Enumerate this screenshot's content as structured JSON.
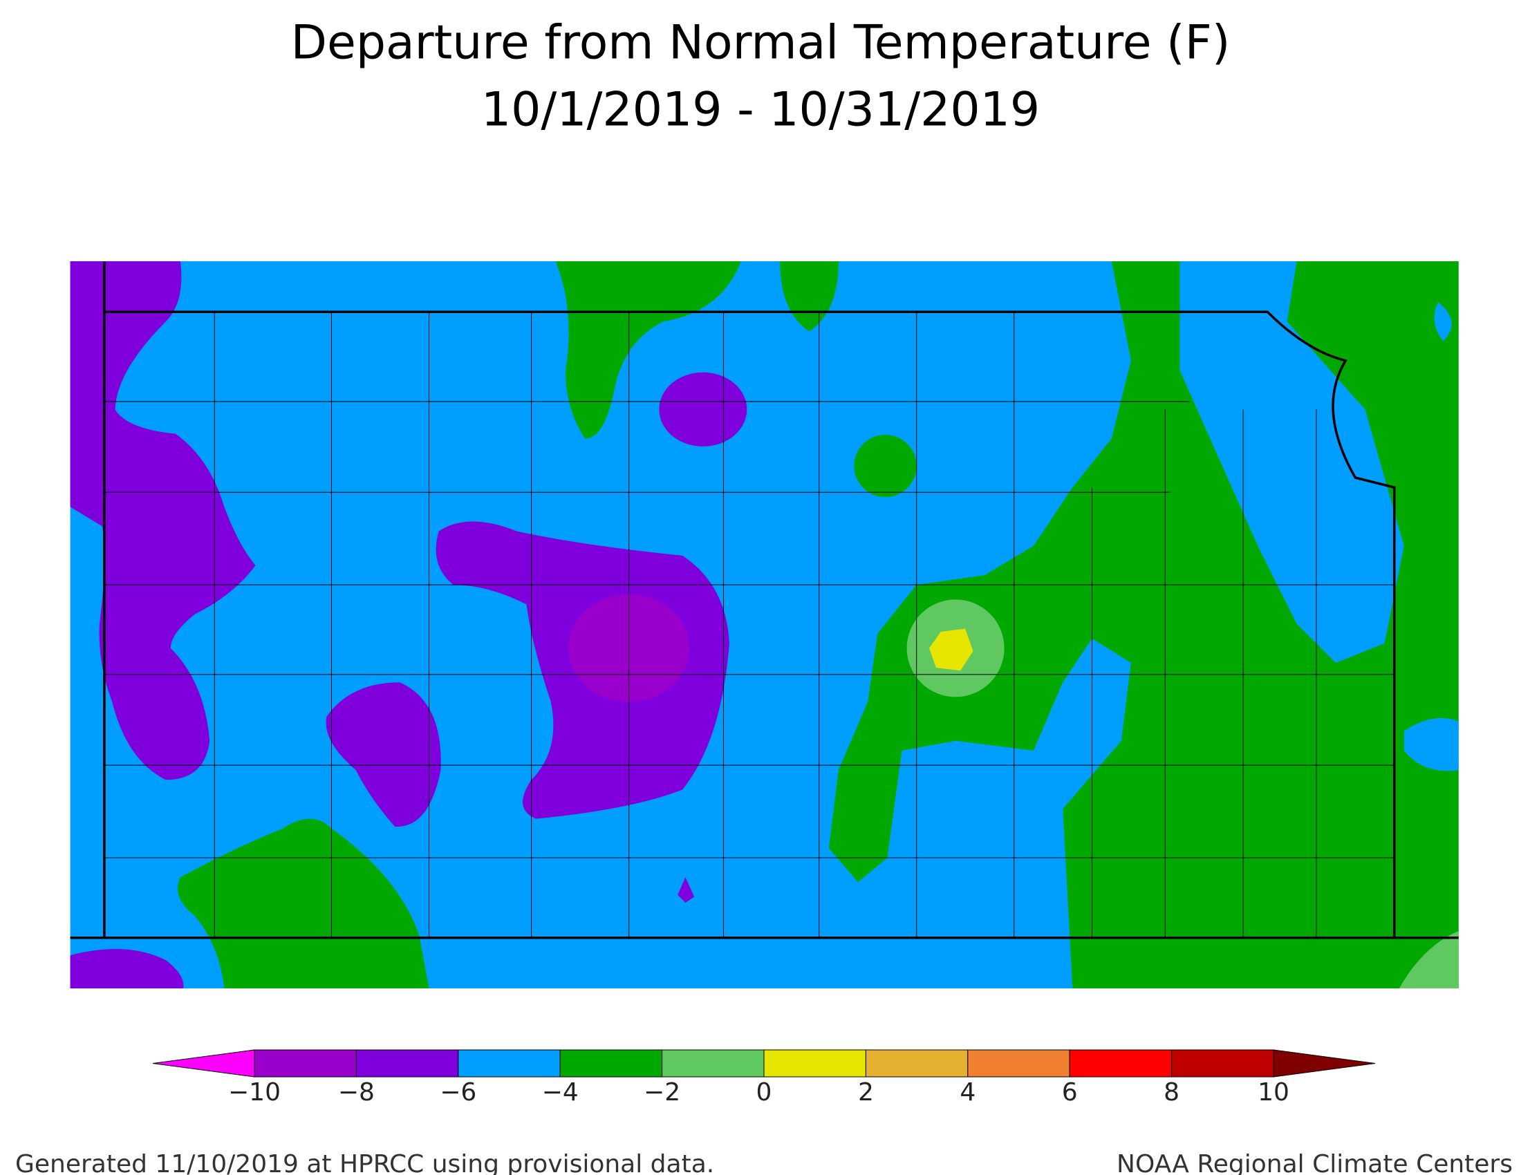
{
  "title": "Departure from Normal Temperature (F)",
  "subtitle": "10/1/2019 - 10/31/2019",
  "legend": {
    "below_color": "#ff00ff",
    "above_color": "#800000",
    "colors": [
      "#9900cc",
      "#7f00dd",
      "#009eff",
      "#00a800",
      "#60c860",
      "#e6e600",
      "#e6b030",
      "#f08030",
      "#ff0000",
      "#c00000"
    ],
    "ticks": [
      {
        "value": -10,
        "label": "−10"
      },
      {
        "value": -8,
        "label": "−8"
      },
      {
        "value": -6,
        "label": "−6"
      },
      {
        "value": -4,
        "label": "−4"
      },
      {
        "value": -2,
        "label": "−2"
      },
      0,
      2,
      4,
      6,
      8,
      10
    ]
  },
  "footer_left": "Generated 11/10/2019 at HPRCC using provisional data.",
  "footer_right": "NOAA Regional Climate Centers"
}
